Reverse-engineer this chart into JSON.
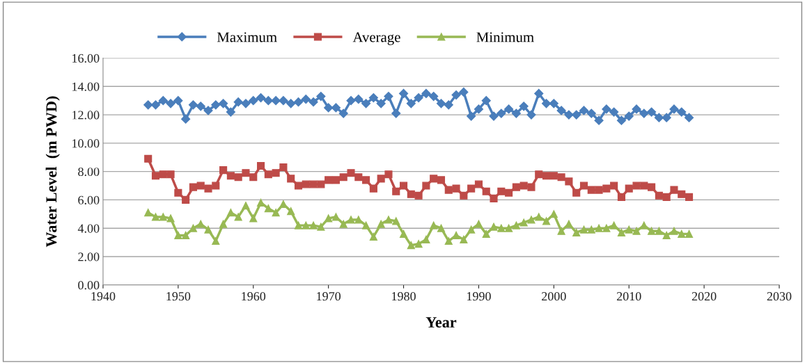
{
  "chart_data": {
    "type": "line",
    "xlabel": "Year",
    "ylabel": "Water Level  (m PWD)",
    "x": [
      1946,
      1947,
      1948,
      1949,
      1950,
      1951,
      1952,
      1953,
      1954,
      1955,
      1956,
      1957,
      1958,
      1959,
      1960,
      1961,
      1962,
      1963,
      1964,
      1965,
      1966,
      1967,
      1968,
      1969,
      1970,
      1971,
      1972,
      1973,
      1974,
      1975,
      1976,
      1977,
      1978,
      1979,
      1980,
      1981,
      1982,
      1983,
      1984,
      1985,
      1986,
      1987,
      1988,
      1989,
      1990,
      1991,
      1992,
      1993,
      1994,
      1995,
      1996,
      1997,
      1998,
      1999,
      2000,
      2001,
      2002,
      2003,
      2004,
      2005,
      2006,
      2007,
      2008,
      2009,
      2010,
      2011,
      2012,
      2013,
      2014,
      2015,
      2016,
      2017,
      2018
    ],
    "series": [
      {
        "name": "Maximum",
        "color": "#4a7ebb",
        "marker": "diamond",
        "values": [
          12.7,
          12.7,
          13.0,
          12.8,
          13.0,
          11.7,
          12.7,
          12.6,
          12.3,
          12.7,
          12.8,
          12.2,
          12.9,
          12.8,
          13.0,
          13.2,
          13.0,
          13.0,
          13.0,
          12.8,
          12.9,
          13.1,
          12.9,
          13.3,
          12.5,
          12.5,
          12.1,
          13.0,
          13.1,
          12.8,
          13.2,
          12.8,
          13.3,
          12.1,
          13.5,
          12.8,
          13.2,
          13.5,
          13.3,
          12.8,
          12.7,
          13.4,
          13.6,
          11.9,
          12.4,
          13.0,
          11.9,
          12.1,
          12.4,
          12.1,
          12.6,
          12.0,
          13.5,
          12.8,
          12.8,
          12.3,
          12.0,
          12.0,
          12.3,
          12.1,
          11.6,
          12.4,
          12.2,
          11.6,
          11.9,
          12.4,
          12.1,
          12.2,
          11.8,
          11.8,
          12.4,
          12.2,
          11.8
        ]
      },
      {
        "name": "Average",
        "color": "#be4b48",
        "marker": "square",
        "values": [
          8.9,
          7.7,
          7.8,
          7.8,
          6.5,
          6.0,
          6.9,
          7.0,
          6.8,
          7.0,
          8.1,
          7.7,
          7.6,
          7.9,
          7.6,
          8.4,
          7.8,
          7.9,
          8.3,
          7.5,
          7.0,
          7.1,
          7.1,
          7.1,
          7.4,
          7.4,
          7.6,
          7.9,
          7.6,
          7.4,
          6.8,
          7.5,
          7.8,
          6.6,
          7.0,
          6.4,
          6.3,
          7.0,
          7.5,
          7.4,
          6.7,
          6.8,
          6.3,
          6.8,
          7.1,
          6.6,
          6.1,
          6.6,
          6.5,
          6.9,
          7.0,
          6.9,
          7.8,
          7.7,
          7.7,
          7.6,
          7.3,
          6.5,
          7.0,
          6.7,
          6.7,
          6.8,
          7.0,
          6.2,
          6.8,
          7.0,
          7.0,
          6.9,
          6.3,
          6.2,
          6.7,
          6.4,
          6.2
        ]
      },
      {
        "name": "Minimum",
        "color": "#98b954",
        "marker": "triangle",
        "values": [
          5.1,
          4.8,
          4.8,
          4.7,
          3.5,
          3.5,
          4.0,
          4.3,
          3.9,
          3.1,
          4.3,
          5.1,
          4.8,
          5.6,
          4.7,
          5.8,
          5.4,
          5.1,
          5.7,
          5.2,
          4.2,
          4.2,
          4.2,
          4.1,
          4.7,
          4.8,
          4.3,
          4.6,
          4.6,
          4.2,
          3.4,
          4.3,
          4.6,
          4.5,
          3.6,
          2.8,
          2.9,
          3.2,
          4.2,
          4.0,
          3.1,
          3.5,
          3.2,
          3.9,
          4.3,
          3.6,
          4.1,
          4.0,
          4.0,
          4.2,
          4.4,
          4.6,
          4.8,
          4.5,
          5.0,
          3.8,
          4.3,
          3.7,
          3.9,
          3.9,
          4.0,
          4.0,
          4.2,
          3.7,
          3.9,
          3.8,
          4.2,
          3.8,
          3.8,
          3.5,
          3.8,
          3.6,
          3.6
        ]
      }
    ],
    "xlim": [
      1940,
      2030
    ],
    "xticks": [
      1940,
      1950,
      1960,
      1970,
      1980,
      1990,
      2000,
      2010,
      2020,
      2030
    ],
    "ylim": [
      0,
      16
    ],
    "yticks": [
      {
        "value": 0,
        "label": "0.00"
      },
      {
        "value": 2,
        "label": "2.00"
      },
      {
        "value": 4,
        "label": "4.00"
      },
      {
        "value": 6,
        "label": "6.00"
      },
      {
        "value": 8,
        "label": "8.00"
      },
      {
        "value": 10,
        "label": "10.00"
      },
      {
        "value": 12,
        "label": "12.00"
      },
      {
        "value": 14,
        "label": "14.00"
      },
      {
        "value": 16,
        "label": "16.00"
      }
    ],
    "grid": "y",
    "legend": "top",
    "line_style": "solid"
  }
}
